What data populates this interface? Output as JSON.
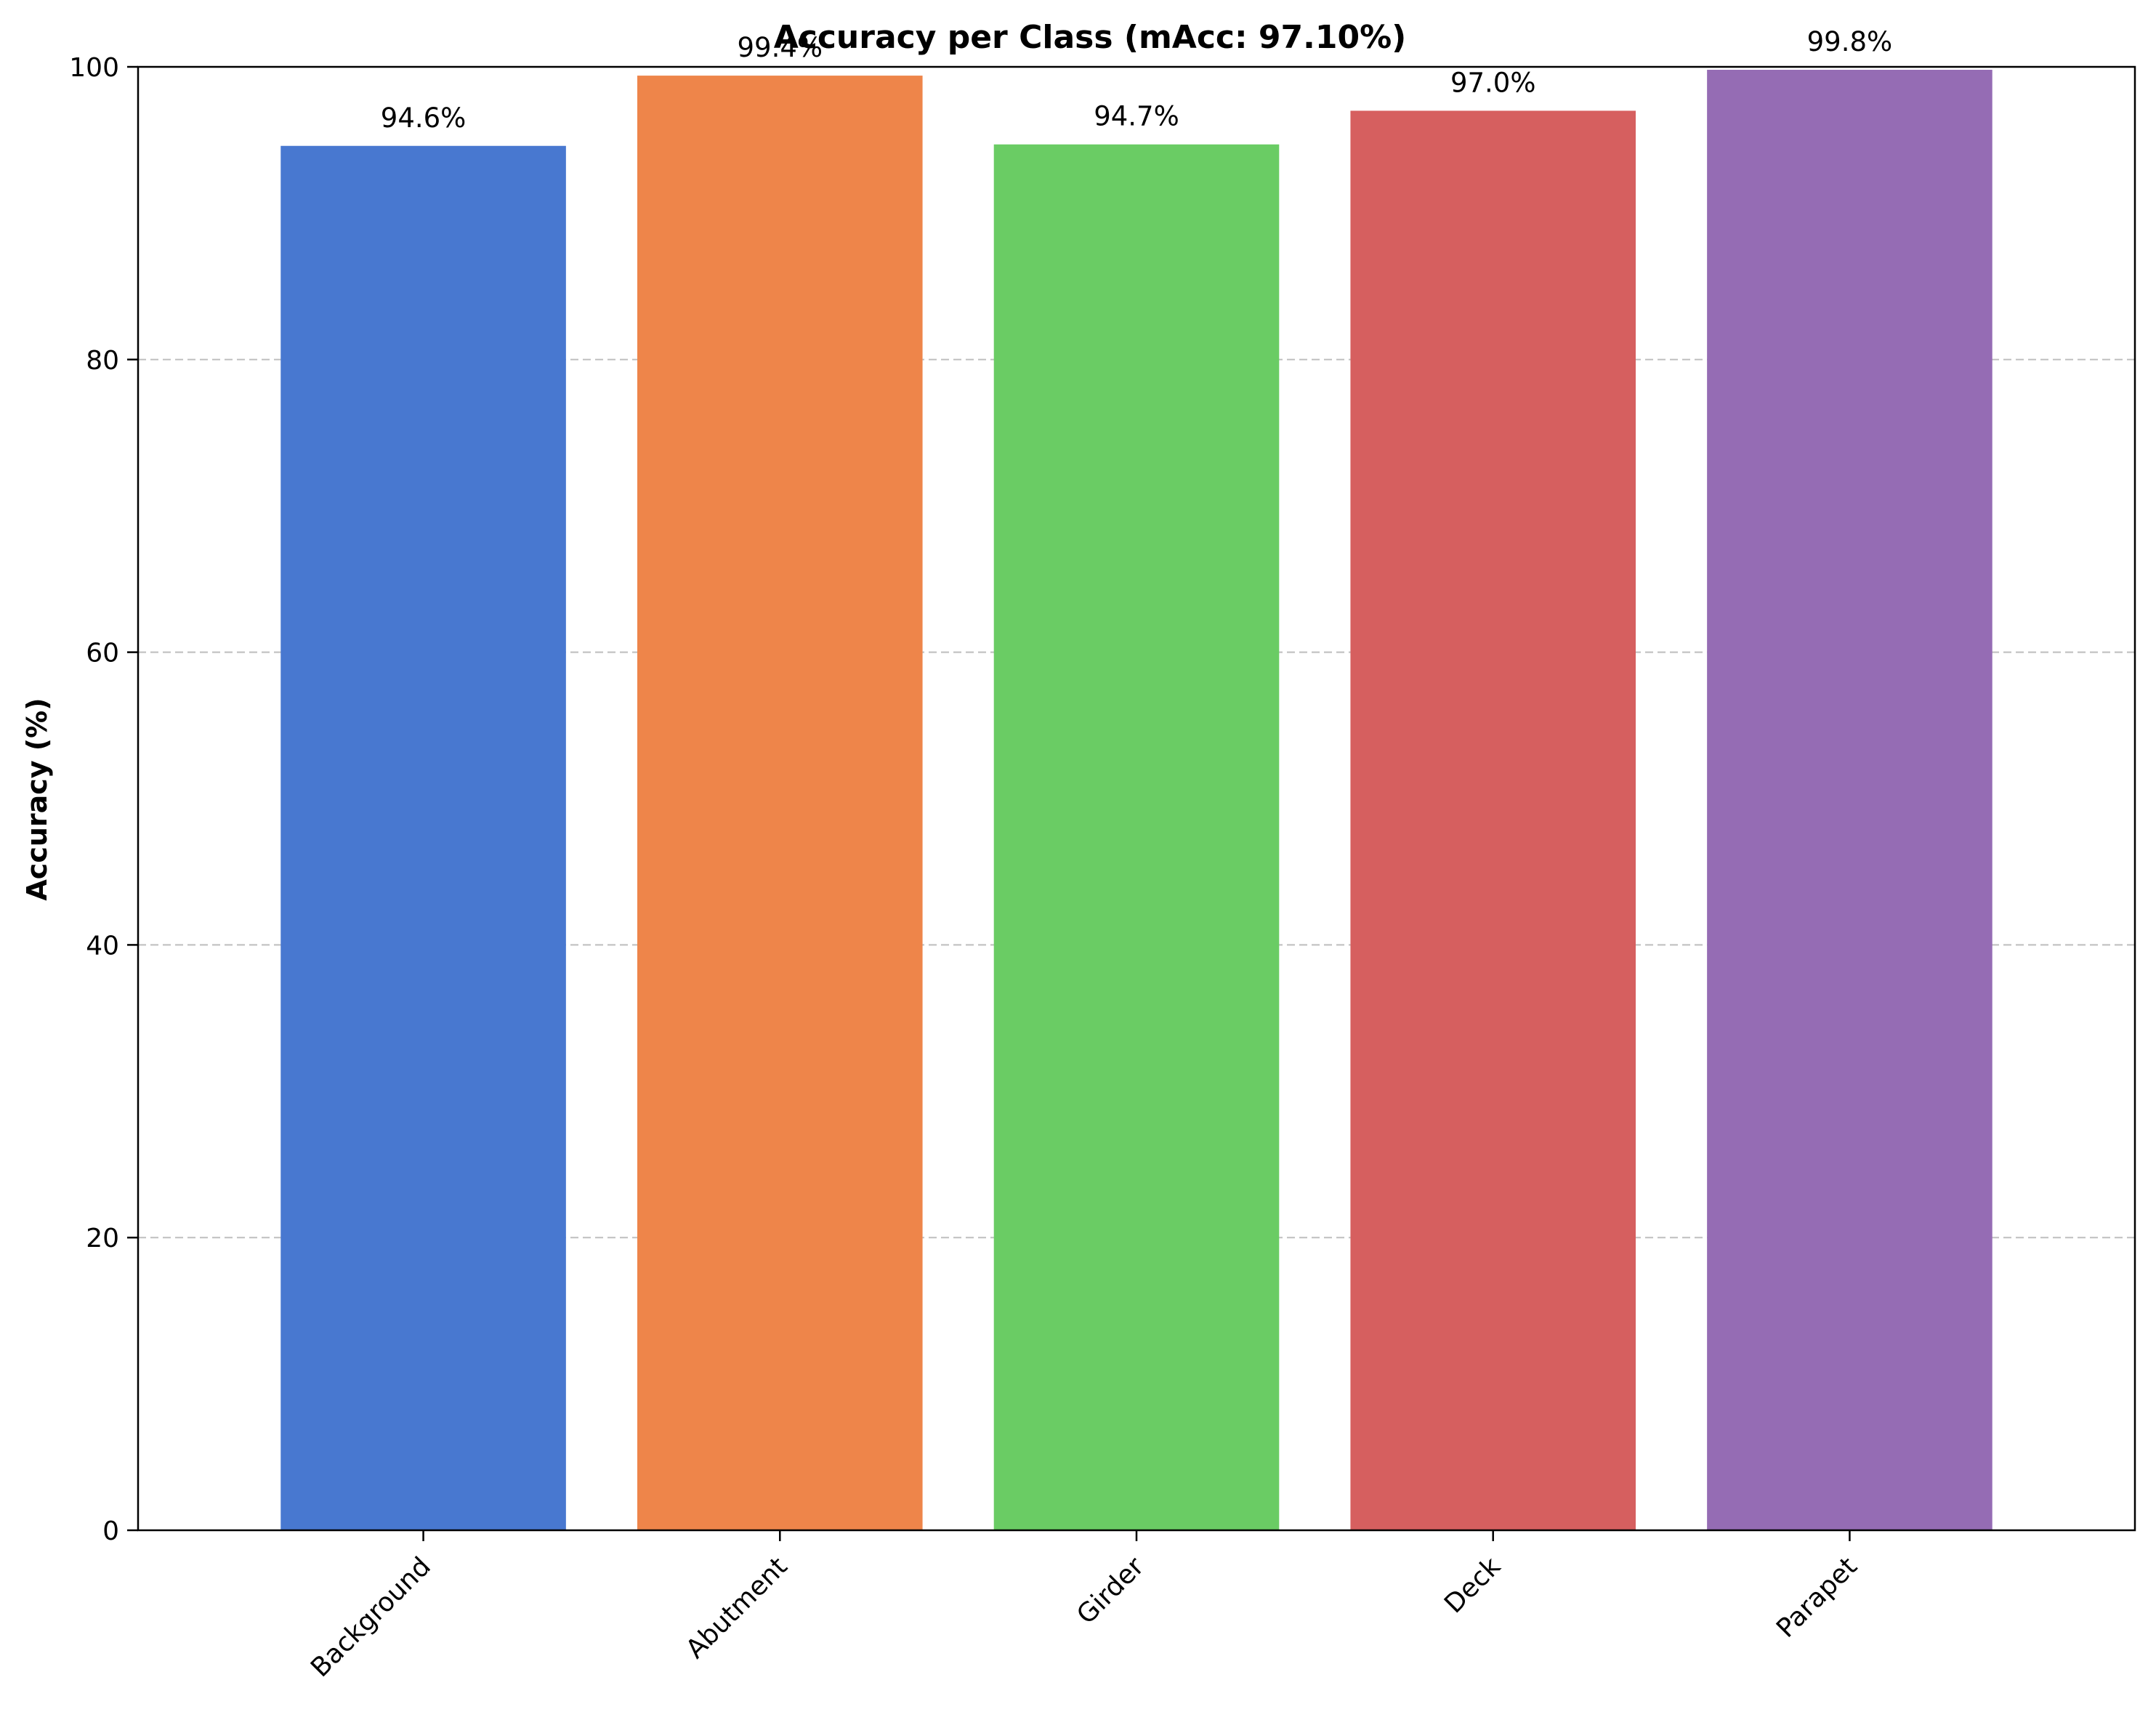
{
  "chart_data": {
    "type": "bar",
    "title": "Accuracy per Class (mAcc: 97.10%)",
    "xlabel": "",
    "ylabel": "Accuracy (%)",
    "categories": [
      "Background",
      "Abutment",
      "Girder",
      "Deck",
      "Parapet"
    ],
    "values": [
      94.6,
      99.4,
      94.7,
      97.0,
      99.8
    ],
    "value_labels": [
      "94.6%",
      "99.4%",
      "94.7%",
      "97.0%",
      "99.8%"
    ],
    "colors": [
      "#4878d0",
      "#ee854a",
      "#6acc64",
      "#d65f5f",
      "#956cb4"
    ],
    "ylim": [
      0,
      100
    ],
    "yticks": [
      0,
      20,
      40,
      60,
      80,
      100
    ],
    "ytick_labels": [
      "0",
      "20",
      "40",
      "60",
      "80",
      "100"
    ],
    "grid": "y-dashed",
    "legend": "none"
  }
}
